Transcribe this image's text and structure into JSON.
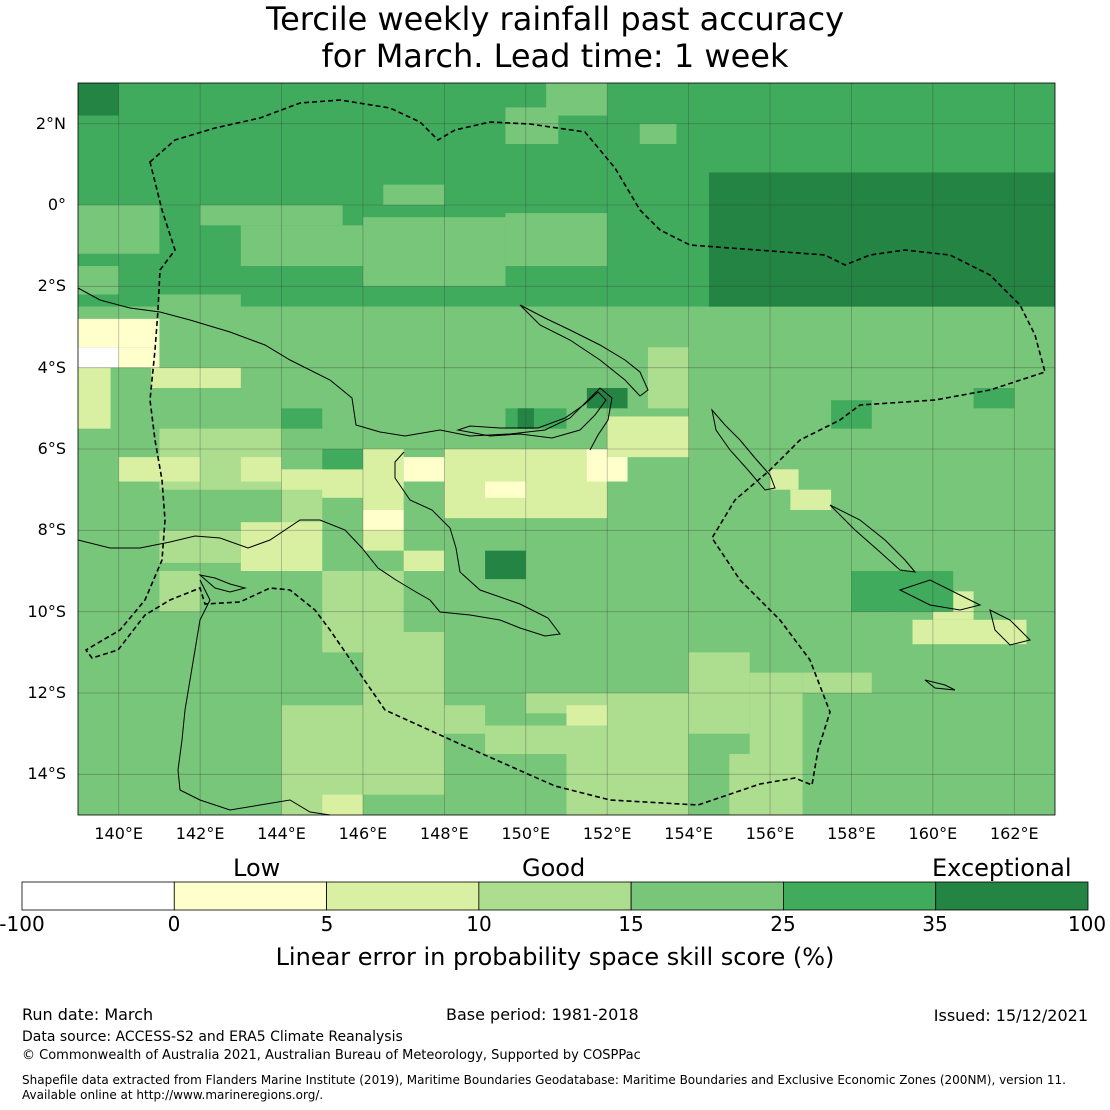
{
  "title": {
    "line1": "Tercile weekly rainfall past accuracy",
    "line2": "for March. Lead time: 1 week"
  },
  "map": {
    "lon_range": [
      139,
      163
    ],
    "lat_range": [
      -15,
      3
    ],
    "lat_ticks": [
      {
        "value": 2,
        "label": "2°N"
      },
      {
        "value": 0,
        "label": "0°"
      },
      {
        "value": -2,
        "label": "2°S"
      },
      {
        "value": -4,
        "label": "4°S"
      },
      {
        "value": -6,
        "label": "6°S"
      },
      {
        "value": -8,
        "label": "8°S"
      },
      {
        "value": -10,
        "label": "10°S"
      },
      {
        "value": -12,
        "label": "12°S"
      },
      {
        "value": -14,
        "label": "14°S"
      }
    ],
    "lon_ticks": [
      {
        "value": 140,
        "label": "140°E"
      },
      {
        "value": 142,
        "label": "142°E"
      },
      {
        "value": 144,
        "label": "144°E"
      },
      {
        "value": 146,
        "label": "146°E"
      },
      {
        "value": 148,
        "label": "148°E"
      },
      {
        "value": 150,
        "label": "150°E"
      },
      {
        "value": 152,
        "label": "152°E"
      },
      {
        "value": 154,
        "label": "154°E"
      },
      {
        "value": 156,
        "label": "156°E"
      },
      {
        "value": 158,
        "label": "158°E"
      },
      {
        "value": 160,
        "label": "160°E"
      },
      {
        "value": 162,
        "label": "162°E"
      }
    ]
  },
  "colorbar": {
    "category_labels": [
      "Low",
      "Good",
      "Exceptional"
    ],
    "bins": [
      {
        "from": -100,
        "to": 0,
        "color": "#ffffff"
      },
      {
        "from": 0,
        "to": 5,
        "color": "#ffffcc"
      },
      {
        "from": 5,
        "to": 10,
        "color": "#d9f0a3"
      },
      {
        "from": 10,
        "to": 15,
        "color": "#addd8e"
      },
      {
        "from": 15,
        "to": 25,
        "color": "#78c679"
      },
      {
        "from": 25,
        "to": 35,
        "color": "#41ab5d"
      },
      {
        "from": 35,
        "to": 100,
        "color": "#238443"
      }
    ],
    "tick_labels": [
      "-100",
      "0",
      "5",
      "10",
      "15",
      "25",
      "35",
      "100"
    ],
    "axis_label": "Linear error in probability space skill score (%)"
  },
  "footer": {
    "run_date": "Run date: March",
    "base_period": "Base period: 1981-2018",
    "issued": "Issued: 15/12/2021",
    "data_source": "Data source: ACCESS-S2 and ERA5 Climate Reanalysis",
    "copyright": "© Commonwealth of Australia 2021, Australian Bureau of Meteorology, Supported by COSPPac",
    "shapefile_line1": "Shapefile data extracted from Flanders Marine Institute (2019), Maritime Boundaries Geodatabase: Maritime Boundaries and Exclusive Economic Zones (200NM), version 11.",
    "shapefile_line2": "Available online at http://www.marineregions.org/."
  }
}
